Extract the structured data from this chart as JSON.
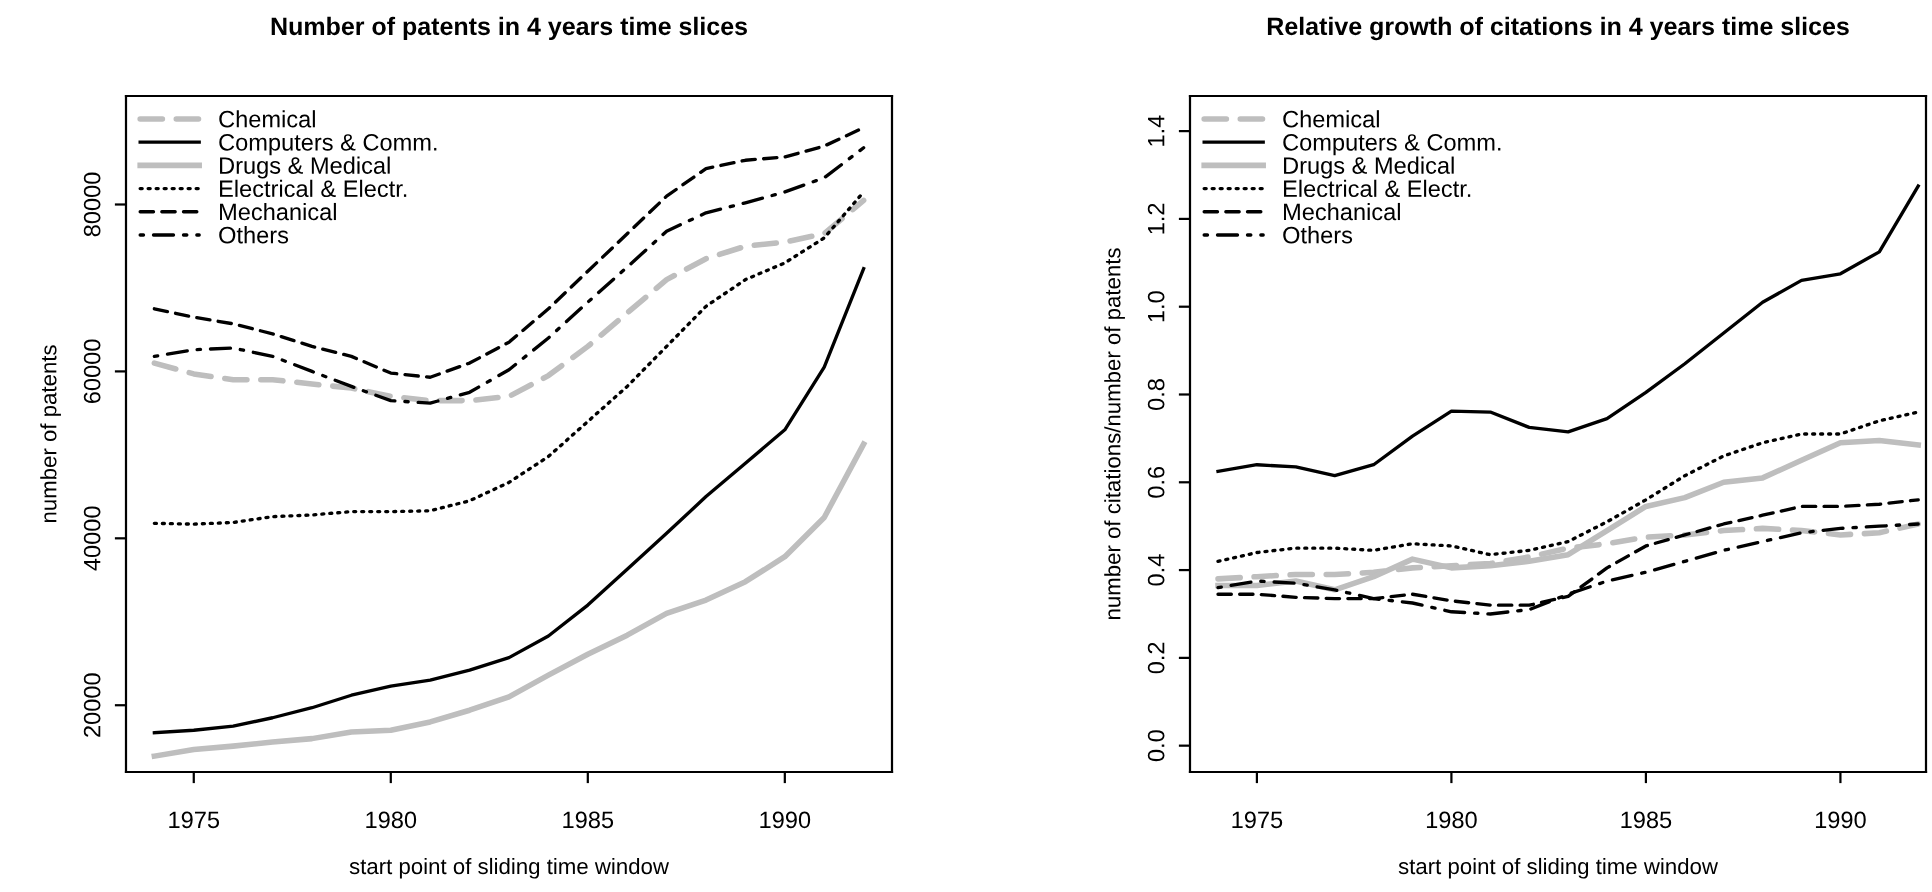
{
  "chart_data": [
    {
      "type": "line",
      "title": "Number of patents in 4 years time slices",
      "xlabel": "start point of sliding time window",
      "ylabel": "number of patents",
      "x": [
        1974,
        1975,
        1976,
        1977,
        1978,
        1979,
        1980,
        1981,
        1982,
        1983,
        1984,
        1985,
        1986,
        1987,
        1988,
        1989,
        1990,
        1991,
        1992
      ],
      "xlim": [
        1973.28,
        1992.72
      ],
      "xticks": [
        1975,
        1980,
        1985,
        1990
      ],
      "ylim": [
        12000,
        93000
      ],
      "yticks": [
        20000,
        40000,
        60000,
        80000
      ],
      "grid": false,
      "legend": "top left",
      "marker": "none",
      "series": [
        {
          "name": "Chemical",
          "color": "#bebebe",
          "line_style": "dashed",
          "values": [
            61000,
            59700,
            59000,
            59000,
            58500,
            58000,
            57000,
            56500,
            56500,
            57000,
            59500,
            63000,
            67000,
            71000,
            73500,
            75000,
            75500,
            76500,
            80500
          ]
        },
        {
          "name": "Computers & Comm.",
          "color": "#000000",
          "line_style": "solid",
          "values": [
            16700,
            17000,
            17500,
            18500,
            19700,
            21200,
            22300,
            23000,
            24200,
            25700,
            28300,
            32000,
            36300,
            40600,
            45000,
            49000,
            53000,
            60500,
            72300
          ]
        },
        {
          "name": "Drugs & Medical",
          "color": "#bebebe",
          "line_style": "solid",
          "values": [
            13900,
            14700,
            15100,
            15600,
            16000,
            16800,
            17000,
            18000,
            19400,
            21000,
            23600,
            26100,
            28400,
            31000,
            32600,
            34800,
            37800,
            42500,
            51300
          ]
        },
        {
          "name": "Electrical & Electr.",
          "color": "#000000",
          "line_style": "dotted",
          "values": [
            41800,
            41700,
            41900,
            42600,
            42800,
            43200,
            43200,
            43300,
            44500,
            46700,
            49800,
            54000,
            58200,
            63000,
            67800,
            71000,
            73000,
            76000,
            81500
          ]
        },
        {
          "name": "Mechanical",
          "color": "#000000",
          "line_style": "dashed",
          "values": [
            67500,
            66500,
            65700,
            64500,
            63000,
            61800,
            59800,
            59300,
            61000,
            63500,
            67500,
            72000,
            76500,
            81000,
            84300,
            85300,
            85700,
            87000,
            89200
          ]
        },
        {
          "name": "Others",
          "color": "#000000",
          "line_style": "dashdot",
          "values": [
            61800,
            62600,
            62800,
            61800,
            60000,
            58200,
            56500,
            56200,
            57500,
            60200,
            64000,
            68300,
            72500,
            76800,
            79000,
            80200,
            81500,
            83200,
            86800
          ]
        }
      ]
    },
    {
      "type": "line",
      "title": "Relative growth of citations in 4 years time slices",
      "xlabel": "start point of sliding time window",
      "ylabel": "number of citations/number of patents",
      "x": [
        1974,
        1975,
        1976,
        1977,
        1978,
        1979,
        1980,
        1981,
        1982,
        1983,
        1984,
        1985,
        1986,
        1987,
        1988,
        1989,
        1990,
        1991,
        1992
      ],
      "xlim": [
        1973.28,
        1992.2
      ],
      "xticks": [
        1975,
        1980,
        1985,
        1990
      ],
      "ylim": [
        -0.06,
        1.48
      ],
      "yticks": [
        {
          "value": 0,
          "label": "0.0"
        },
        0.2,
        0.4,
        0.6,
        0.8,
        {
          "value": 1,
          "label": "1.0"
        },
        1.2,
        1.4
      ],
      "grid": false,
      "legend": "top left",
      "marker": "none",
      "series": [
        {
          "name": "Chemical",
          "color": "#bebebe",
          "line_style": "dashed",
          "values": [
            0.38,
            0.385,
            0.39,
            0.39,
            0.395,
            0.405,
            0.41,
            0.415,
            0.43,
            0.45,
            0.46,
            0.475,
            0.48,
            0.49,
            0.495,
            0.49,
            0.48,
            0.485,
            0.505
          ]
        },
        {
          "name": "Computers & Comm.",
          "color": "#000000",
          "line_style": "solid",
          "values": [
            0.625,
            0.64,
            0.635,
            0.615,
            0.64,
            0.705,
            0.762,
            0.76,
            0.725,
            0.715,
            0.745,
            0.805,
            0.87,
            0.94,
            1.01,
            1.06,
            1.075,
            1.125,
            1.275
          ]
        },
        {
          "name": "Drugs & Medical",
          "color": "#bebebe",
          "line_style": "solid",
          "values": [
            0.365,
            0.365,
            0.375,
            0.355,
            0.385,
            0.425,
            0.405,
            0.41,
            0.42,
            0.435,
            0.49,
            0.545,
            0.565,
            0.6,
            0.61,
            0.65,
            0.69,
            0.695,
            0.685
          ]
        },
        {
          "name": "Electrical & Electr.",
          "color": "#000000",
          "line_style": "dotted",
          "values": [
            0.42,
            0.44,
            0.45,
            0.45,
            0.445,
            0.46,
            0.455,
            0.435,
            0.445,
            0.465,
            0.51,
            0.56,
            0.615,
            0.66,
            0.69,
            0.71,
            0.71,
            0.74,
            0.76
          ]
        },
        {
          "name": "Mechanical",
          "color": "#000000",
          "line_style": "dashed",
          "values": [
            0.345,
            0.345,
            0.338,
            0.335,
            0.335,
            0.345,
            0.33,
            0.32,
            0.32,
            0.34,
            0.405,
            0.455,
            0.48,
            0.505,
            0.525,
            0.545,
            0.545,
            0.55,
            0.56
          ]
        },
        {
          "name": "Others",
          "color": "#000000",
          "line_style": "dashdot",
          "values": [
            0.36,
            0.375,
            0.37,
            0.355,
            0.335,
            0.325,
            0.305,
            0.3,
            0.31,
            0.345,
            0.375,
            0.395,
            0.42,
            0.445,
            0.465,
            0.485,
            0.495,
            0.5,
            0.505
          ]
        }
      ]
    }
  ]
}
